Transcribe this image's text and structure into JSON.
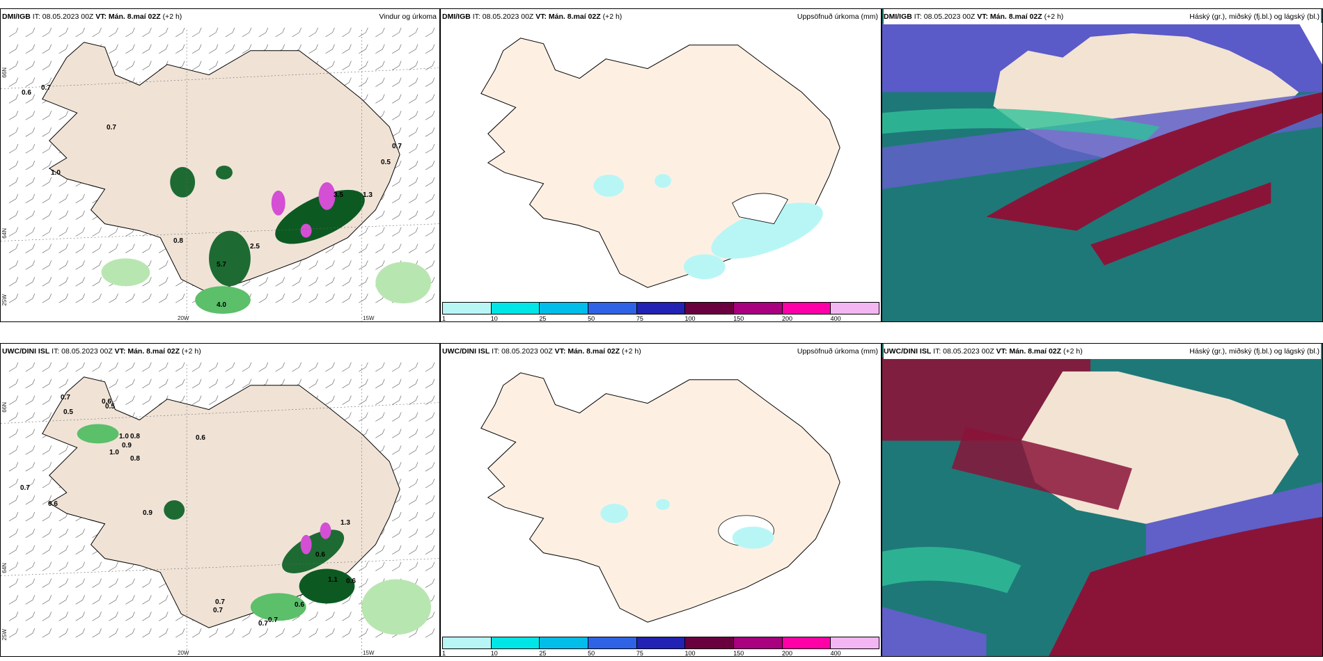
{
  "rows": [
    {
      "model": "DMI/IGB",
      "it": "IT: 08.05.2023 00Z",
      "vt": "VT: Mán. 8.maí 02Z",
      "lead": "(+2 h)",
      "wind_title": "Vindur og úrkoma",
      "precip_title": "Uppsöfnuð úrkoma (mm)",
      "cloud_title": "Háský (gr.), miðský (fj.bl.) og lágský (bl.)",
      "wind_labels": [
        "0.6",
        "0.7",
        "0.7",
        "1.0",
        "0.8",
        "2.5",
        "5.7",
        "4.0",
        "3.5",
        "0.5",
        "0.7",
        "1.3"
      ]
    },
    {
      "model": "UWC/DINI ISL",
      "it": "IT: 08.05.2023 00Z",
      "vt": "VT: Mán. 8.maí 02Z",
      "lead": "(+2 h)",
      "wind_title": "",
      "precip_title": "Uppsöfnuð úrkoma (mm)",
      "cloud_title": "Háský (gr.), miðský (fj.bl.) og lágský (bl.)",
      "wind_labels": [
        "0.7",
        "0.6",
        "0.5",
        "0.5",
        "1.0",
        "0.8",
        "0.9",
        "1.0",
        "0.8",
        "0.6",
        "0.7",
        "0.6",
        "0.9",
        "0.6",
        "0.7",
        "0.7",
        "0.6",
        "0.7",
        "0.7",
        "1.1",
        "0.6",
        "1.3"
      ]
    }
  ],
  "axis_labels": {
    "lat_66": "66N",
    "lat_64": "64N",
    "lon_20": "20W",
    "lon_15": "15W",
    "lon_25": "25W"
  },
  "colorbar": {
    "ticks": [
      "1",
      "10",
      "25",
      "50",
      "75",
      "100",
      "150",
      "200",
      "400"
    ],
    "colors": [
      "#b8f6f6",
      "#00e5e5",
      "#00bde9",
      "#2e63e6",
      "#2222b4",
      "#6a003e",
      "#a8007e",
      "#ff00a8",
      "#f3b6f3"
    ]
  },
  "colors": {
    "land": "#faf0e0",
    "sea": "#ffffff",
    "green_light": "#b8e6b0",
    "green_mid": "#5cbf6a",
    "green_dark": "#0c5a22",
    "magenta": "#d44fd4",
    "cloud_teal": "#1e7878",
    "cloud_blue": "#6060c8",
    "cloud_red": "#8a1438",
    "cloud_green": "#30c098"
  }
}
